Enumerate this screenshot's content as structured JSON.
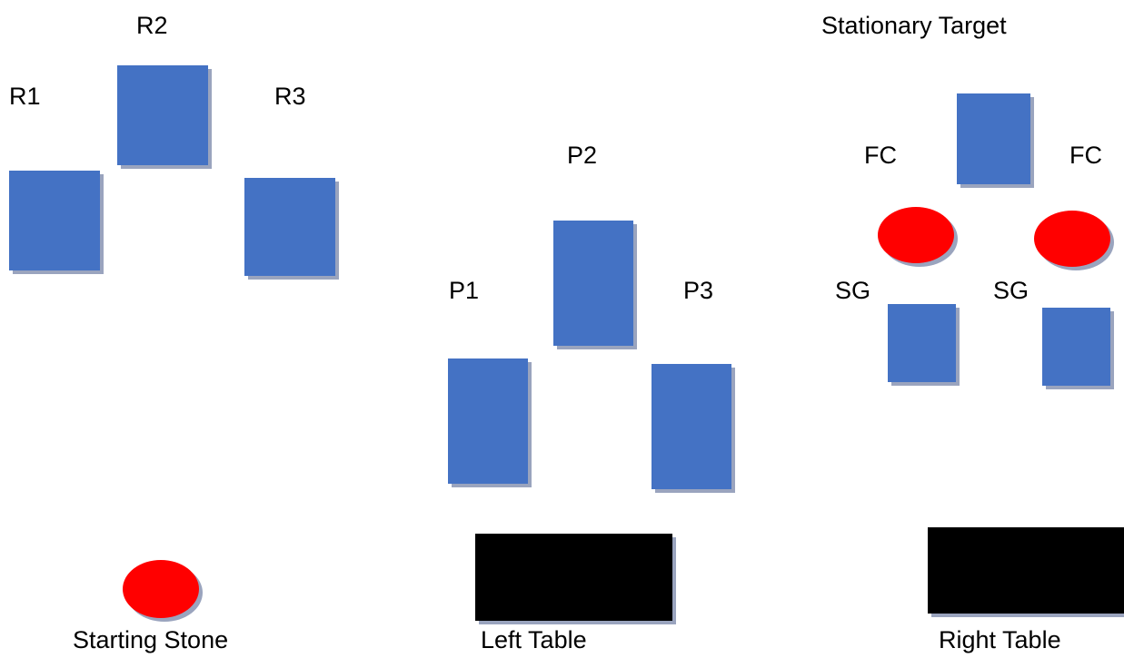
{
  "colors": {
    "block": "#4472c4",
    "stone": "#ff0000",
    "table": "#000000",
    "shadow": "#9aa4be"
  },
  "labels": {
    "r1": "R1",
    "r2": "R2",
    "r3": "R3",
    "p1": "P1",
    "p2": "P2",
    "p3": "P3",
    "fc_left": "FC",
    "fc_right": "FC",
    "sg_left": "SG",
    "sg_right": "SG",
    "stationary_target": "Stationary Target",
    "starting_stone": "Starting Stone",
    "left_table": "Left Table",
    "right_table": "Right Table"
  }
}
